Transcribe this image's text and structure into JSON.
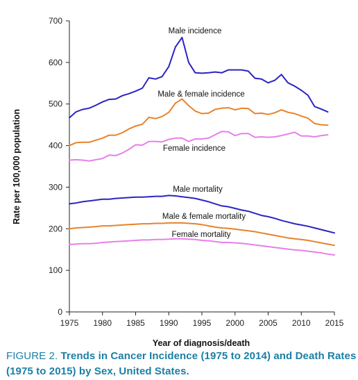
{
  "chart_data": {
    "type": "line",
    "xlabel": "Year of diagnosis/death",
    "ylabel": "Rate per 100,000 population",
    "xlim": [
      1975,
      2015
    ],
    "ylim": [
      0,
      700
    ],
    "x_ticks": [
      1975,
      1980,
      1985,
      1990,
      1995,
      2000,
      2005,
      2010,
      2015
    ],
    "y_ticks": [
      0,
      100,
      200,
      300,
      400,
      500,
      600,
      700
    ],
    "grid": false,
    "legend": "none (inline series labels)",
    "series": [
      {
        "name": "Male incidence",
        "color": "#2a24c2",
        "x": [
          1975,
          1976,
          1977,
          1978,
          1979,
          1980,
          1981,
          1982,
          1983,
          1984,
          1985,
          1986,
          1987,
          1988,
          1989,
          1990,
          1991,
          1992,
          1993,
          1994,
          1995,
          1996,
          1997,
          1998,
          1999,
          2000,
          2001,
          2002,
          2003,
          2004,
          2005,
          2006,
          2007,
          2008,
          2009,
          2010,
          2011,
          2012,
          2013,
          2014
        ],
        "values": [
          467,
          481,
          487,
          490,
          497,
          505,
          511,
          512,
          520,
          525,
          531,
          538,
          563,
          560,
          566,
          590,
          637,
          660,
          600,
          575,
          574,
          575,
          577,
          575,
          582,
          582,
          582,
          579,
          562,
          560,
          551,
          557,
          571,
          551,
          543,
          533,
          521,
          494,
          488,
          481
        ]
      },
      {
        "name": "Male & female incidence",
        "color": "#e8822a",
        "x": [
          1975,
          1976,
          1977,
          1978,
          1979,
          1980,
          1981,
          1982,
          1983,
          1984,
          1985,
          1986,
          1987,
          1988,
          1989,
          1990,
          1991,
          1992,
          1993,
          1994,
          1995,
          1996,
          1997,
          1998,
          1999,
          2000,
          2001,
          2002,
          2003,
          2004,
          2005,
          2006,
          2007,
          2008,
          2009,
          2010,
          2011,
          2012,
          2013,
          2014
        ],
        "values": [
          400,
          407,
          408,
          408,
          413,
          418,
          425,
          425,
          431,
          440,
          447,
          451,
          468,
          465,
          470,
          480,
          502,
          512,
          496,
          483,
          477,
          478,
          487,
          490,
          491,
          486,
          490,
          489,
          477,
          478,
          475,
          479,
          486,
          480,
          477,
          471,
          466,
          453,
          450,
          449
        ]
      },
      {
        "name": "Female incidence",
        "color": "#e680e8",
        "x": [
          1975,
          1976,
          1977,
          1978,
          1979,
          1980,
          1981,
          1982,
          1983,
          1984,
          1985,
          1986,
          1987,
          1988,
          1989,
          1990,
          1991,
          1992,
          1993,
          1994,
          1995,
          1996,
          1997,
          1998,
          1999,
          2000,
          2001,
          2002,
          2003,
          2004,
          2005,
          2006,
          2007,
          2008,
          2009,
          2010,
          2011,
          2012,
          2013,
          2014
        ],
        "values": [
          365,
          366,
          365,
          363,
          366,
          369,
          377,
          376,
          382,
          391,
          402,
          401,
          410,
          410,
          409,
          415,
          418,
          418,
          410,
          416,
          416,
          418,
          426,
          434,
          433,
          424,
          429,
          429,
          420,
          421,
          420,
          421,
          424,
          428,
          432,
          423,
          423,
          421,
          424,
          426
        ]
      },
      {
        "name": "Male mortality",
        "color": "#2a24c2",
        "x": [
          1975,
          1976,
          1977,
          1978,
          1979,
          1980,
          1981,
          1982,
          1983,
          1984,
          1985,
          1986,
          1987,
          1988,
          1989,
          1990,
          1991,
          1992,
          1993,
          1994,
          1995,
          1996,
          1997,
          1998,
          1999,
          2000,
          2001,
          2002,
          2003,
          2004,
          2005,
          2006,
          2007,
          2008,
          2009,
          2010,
          2011,
          2012,
          2013,
          2014,
          2015
        ],
        "values": [
          260,
          262,
          265,
          267,
          269,
          271,
          271,
          273,
          274,
          275,
          276,
          276,
          277,
          278,
          278,
          280,
          279,
          277,
          275,
          273,
          269,
          265,
          260,
          255,
          253,
          249,
          245,
          242,
          237,
          232,
          229,
          225,
          220,
          216,
          212,
          209,
          206,
          202,
          198,
          194,
          190
        ]
      },
      {
        "name": "Male & female mortality",
        "color": "#e8822a",
        "x": [
          1975,
          1976,
          1977,
          1978,
          1979,
          1980,
          1981,
          1982,
          1983,
          1984,
          1985,
          1986,
          1987,
          1988,
          1989,
          1990,
          1991,
          1992,
          1993,
          1994,
          1995,
          1996,
          1997,
          1998,
          1999,
          2000,
          2001,
          2002,
          2003,
          2004,
          2005,
          2006,
          2007,
          2008,
          2009,
          2010,
          2011,
          2012,
          2013,
          2014,
          2015
        ],
        "values": [
          200,
          202,
          203,
          204,
          205,
          207,
          207,
          208,
          209,
          210,
          211,
          212,
          212,
          213,
          213,
          214,
          214,
          214,
          213,
          212,
          210,
          207,
          204,
          202,
          201,
          199,
          197,
          195,
          193,
          190,
          187,
          184,
          181,
          178,
          176,
          174,
          172,
          169,
          166,
          163,
          160
        ]
      },
      {
        "name": "Female mortality",
        "color": "#e680e8",
        "x": [
          1975,
          1976,
          1977,
          1978,
          1979,
          1980,
          1981,
          1982,
          1983,
          1984,
          1985,
          1986,
          1987,
          1988,
          1989,
          1990,
          1991,
          1992,
          1993,
          1994,
          1995,
          1996,
          1997,
          1998,
          1999,
          2000,
          2001,
          2002,
          2003,
          2004,
          2005,
          2006,
          2007,
          2008,
          2009,
          2010,
          2011,
          2012,
          2013,
          2014,
          2015
        ],
        "values": [
          162,
          163,
          164,
          164,
          165,
          167,
          168,
          169,
          170,
          171,
          172,
          173,
          173,
          174,
          174,
          175,
          176,
          176,
          175,
          174,
          172,
          171,
          169,
          167,
          167,
          166,
          165,
          163,
          161,
          159,
          157,
          155,
          153,
          151,
          149,
          148,
          146,
          144,
          142,
          139,
          137
        ]
      }
    ]
  },
  "caption": {
    "figure_label": "FIGURE 2.",
    "text": "Trends in Cancer Incidence (1975 to 2014) and Death Rates (1975 to 2015) by Sex, United States."
  }
}
